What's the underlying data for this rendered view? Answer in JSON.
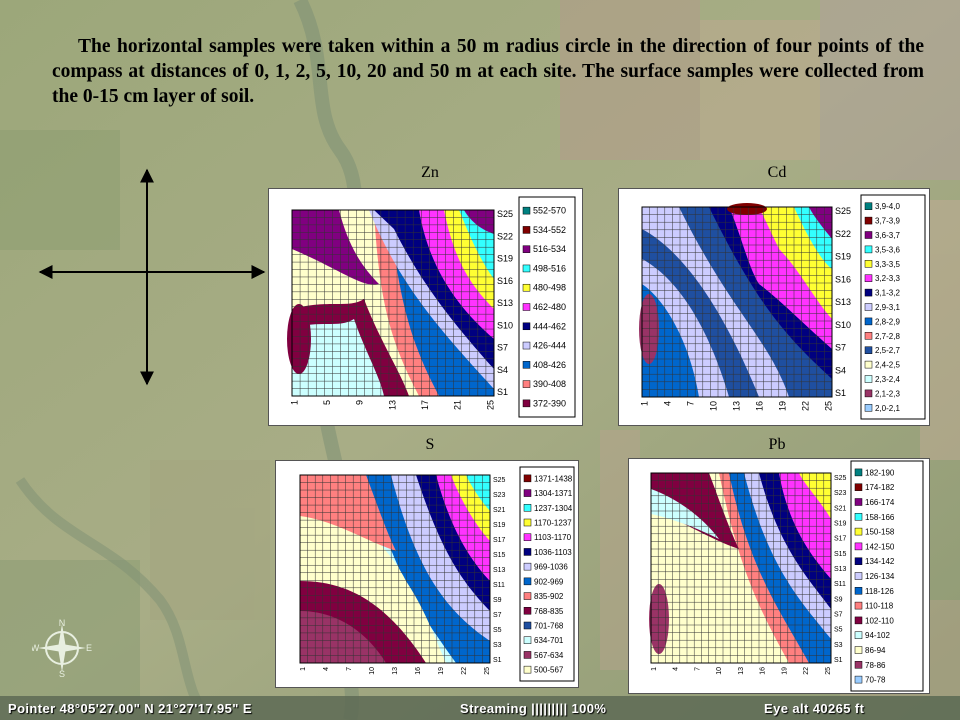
{
  "intro_text": "The horizontal samples were taken within a 50 m radius circle in the direction of four points of the compass at distances of 0, 1, 2, 5, 10, 20 and 50 m at each site. The surface samples were collected from the 0-15 cm layer of soil.",
  "maps": [
    {
      "id": "zn",
      "title": "Zn",
      "x_labels": [
        "1",
        "5",
        "9",
        "13",
        "17",
        "21",
        "25"
      ],
      "y_labels": [
        "S25",
        "S22",
        "S19",
        "S16",
        "S13",
        "S10",
        "S7",
        "S4",
        "S1"
      ],
      "legend": [
        {
          "label": "552-570",
          "color": "#008080"
        },
        {
          "label": "534-552",
          "color": "#800000"
        },
        {
          "label": "516-534",
          "color": "#800080"
        },
        {
          "label": "498-516",
          "color": "#33ffff"
        },
        {
          "label": "480-498",
          "color": "#ffff33"
        },
        {
          "label": "462-480",
          "color": "#ff33ff"
        },
        {
          "label": "444-462",
          "color": "#000080"
        },
        {
          "label": "426-444",
          "color": "#ccccff"
        },
        {
          "label": "408-426",
          "color": "#0066cc"
        },
        {
          "label": "390-408",
          "color": "#ff8080"
        },
        {
          "label": "372-390",
          "color": "#800040"
        }
      ]
    },
    {
      "id": "cd",
      "title": "Cd",
      "x_labels": [
        "1",
        "4",
        "7",
        "10",
        "13",
        "16",
        "19",
        "22",
        "25"
      ],
      "y_labels": [
        "S25",
        "S22",
        "S19",
        "S16",
        "S13",
        "S10",
        "S7",
        "S4",
        "S1"
      ],
      "legend": [
        {
          "label": "3,9-4,0",
          "color": "#008080"
        },
        {
          "label": "3,7-3,9",
          "color": "#800000"
        },
        {
          "label": "3,6-3,7",
          "color": "#800080"
        },
        {
          "label": "3,5-3,6",
          "color": "#33ffff"
        },
        {
          "label": "3,3-3,5",
          "color": "#ffff33"
        },
        {
          "label": "3,2-3,3",
          "color": "#ff33ff"
        },
        {
          "label": "3,1-3,2",
          "color": "#000080"
        },
        {
          "label": "2,9-3,1",
          "color": "#ccccff"
        },
        {
          "label": "2,8-2,9",
          "color": "#0066cc"
        },
        {
          "label": "2,7-2,8",
          "color": "#ff8080"
        },
        {
          "label": "2,5-2,7",
          "color": "#1f4fa0"
        },
        {
          "label": "2,4-2,5",
          "color": "#ffffcc"
        },
        {
          "label": "2,3-2,4",
          "color": "#ccffff"
        },
        {
          "label": "2,1-2,3",
          "color": "#993366"
        },
        {
          "label": "2,0-2,1",
          "color": "#99ccff"
        }
      ]
    },
    {
      "id": "s",
      "title": "S",
      "x_labels": [
        "1",
        "4",
        "7",
        "10",
        "13",
        "16",
        "19",
        "22",
        "25"
      ],
      "y_labels": [
        "S25",
        "S23",
        "S21",
        "S19",
        "S17",
        "S15",
        "S13",
        "S11",
        "S9",
        "S7",
        "S5",
        "S3",
        "S1"
      ],
      "legend": [
        {
          "label": "1371-1438",
          "color": "#800000"
        },
        {
          "label": "1304-1371",
          "color": "#800080"
        },
        {
          "label": "1237-1304",
          "color": "#33ffff"
        },
        {
          "label": "1170-1237",
          "color": "#ffff33"
        },
        {
          "label": "1103-1170",
          "color": "#ff33ff"
        },
        {
          "label": "1036-1103",
          "color": "#000080"
        },
        {
          "label": "969-1036",
          "color": "#ccccff"
        },
        {
          "label": "902-969",
          "color": "#0066cc"
        },
        {
          "label": "835-902",
          "color": "#ff8080"
        },
        {
          "label": "768-835",
          "color": "#800040"
        },
        {
          "label": "701-768",
          "color": "#1f4fa0"
        },
        {
          "label": "634-701",
          "color": "#ccffff"
        },
        {
          "label": "567-634",
          "color": "#993366"
        },
        {
          "label": "500-567",
          "color": "#ffffcc"
        }
      ]
    },
    {
      "id": "pb",
      "title": "Pb",
      "x_labels": [
        "1",
        "4",
        "7",
        "10",
        "13",
        "16",
        "19",
        "22",
        "25"
      ],
      "y_labels": [
        "S25",
        "S23",
        "S21",
        "S19",
        "S17",
        "S15",
        "S13",
        "S11",
        "S9",
        "S7",
        "S5",
        "S3",
        "S1"
      ],
      "legend": [
        {
          "label": "182-190",
          "color": "#008080"
        },
        {
          "label": "174-182",
          "color": "#800000"
        },
        {
          "label": "166-174",
          "color": "#800080"
        },
        {
          "label": "158-166",
          "color": "#33ffff"
        },
        {
          "label": "150-158",
          "color": "#ffff33"
        },
        {
          "label": "142-150",
          "color": "#ff33ff"
        },
        {
          "label": "134-142",
          "color": "#000080"
        },
        {
          "label": "126-134",
          "color": "#ccccff"
        },
        {
          "label": "118-126",
          "color": "#0066cc"
        },
        {
          "label": "110-118",
          "color": "#ff8080"
        },
        {
          "label": "102-110",
          "color": "#800040"
        },
        {
          "label": "94-102",
          "color": "#ccffff"
        },
        {
          "label": "86-94",
          "color": "#ffffcc"
        },
        {
          "label": "78-86",
          "color": "#993366"
        },
        {
          "label": "70-78",
          "color": "#99ccff"
        }
      ]
    }
  ],
  "statusbar": {
    "pointer": "Pointer  48°05'27.00\" N    21°27'17.95\" E",
    "streaming": "Streaming ||||||||| 100%",
    "eye_alt": "Eye  alt    40265 ft"
  },
  "compass_letters": {
    "n": "N",
    "s": "S",
    "e": "E",
    "w": "W"
  }
}
